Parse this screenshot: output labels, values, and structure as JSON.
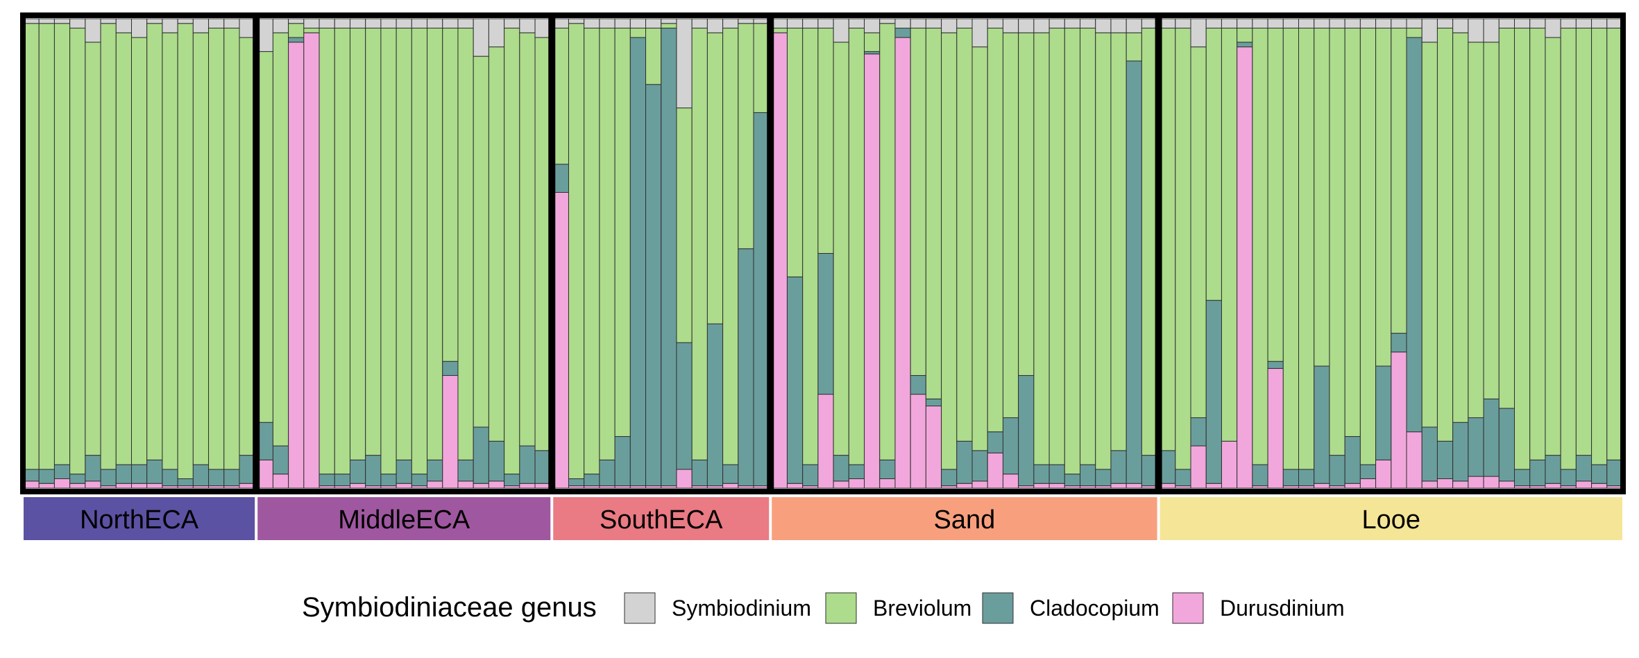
{
  "chart_data": {
    "type": "bar",
    "stacked": true,
    "normalized": true,
    "ylim": [
      0,
      1
    ],
    "xlabel": "",
    "ylabel": "",
    "title": "",
    "grid": false,
    "legend_position": "bottom",
    "series_order": [
      "Durusdinium",
      "Cladocopium",
      "Breviolum",
      "Symbiodinium"
    ],
    "colors": {
      "Symbiodinium": "#D3D3D3",
      "Breviolum": "#ADDC8C",
      "Cladocopium": "#6A9E9D",
      "Durusdinium": "#F1A7DC"
    },
    "legend": {
      "title": "Symbiodiniaceae genus",
      "items": [
        {
          "name": "Symbiodinium",
          "key": "Symbiodinium"
        },
        {
          "name": "Breviolum",
          "key": "Breviolum"
        },
        {
          "name": "Cladocopium",
          "key": "Cladocopium"
        },
        {
          "name": "Durusdinium",
          "key": "Durusdinium"
        }
      ]
    },
    "groups": [
      {
        "name": "NorthECA",
        "color": "#5B52A3",
        "samples": [
          {
            "Symbiodinium": 0.01,
            "Breviolum": 0.95,
            "Cladocopium": 0.025,
            "Durusdinium": 0.015
          },
          {
            "Symbiodinium": 0.01,
            "Breviolum": 0.95,
            "Cladocopium": 0.03,
            "Durusdinium": 0.01
          },
          {
            "Symbiodinium": 0.01,
            "Breviolum": 0.94,
            "Cladocopium": 0.03,
            "Durusdinium": 0.02
          },
          {
            "Symbiodinium": 0.02,
            "Breviolum": 0.95,
            "Cladocopium": 0.02,
            "Durusdinium": 0.01
          },
          {
            "Symbiodinium": 0.05,
            "Breviolum": 0.88,
            "Cladocopium": 0.055,
            "Durusdinium": 0.015
          },
          {
            "Symbiodinium": 0.01,
            "Breviolum": 0.95,
            "Cladocopium": 0.035,
            "Durusdinium": 0.005
          },
          {
            "Symbiodinium": 0.03,
            "Breviolum": 0.92,
            "Cladocopium": 0.04,
            "Durusdinium": 0.01
          },
          {
            "Symbiodinium": 0.04,
            "Breviolum": 0.91,
            "Cladocopium": 0.04,
            "Durusdinium": 0.01
          },
          {
            "Symbiodinium": 0.01,
            "Breviolum": 0.93,
            "Cladocopium": 0.05,
            "Durusdinium": 0.01
          },
          {
            "Symbiodinium": 0.03,
            "Breviolum": 0.93,
            "Cladocopium": 0.035,
            "Durusdinium": 0.005
          },
          {
            "Symbiodinium": 0.01,
            "Breviolum": 0.97,
            "Cladocopium": 0.015,
            "Durusdinium": 0.005
          },
          {
            "Symbiodinium": 0.03,
            "Breviolum": 0.92,
            "Cladocopium": 0.045,
            "Durusdinium": 0.005
          },
          {
            "Symbiodinium": 0.02,
            "Breviolum": 0.94,
            "Cladocopium": 0.035,
            "Durusdinium": 0.005
          },
          {
            "Symbiodinium": 0.02,
            "Breviolum": 0.94,
            "Cladocopium": 0.035,
            "Durusdinium": 0.005
          },
          {
            "Symbiodinium": 0.04,
            "Breviolum": 0.89,
            "Cladocopium": 0.06,
            "Durusdinium": 0.01
          }
        ]
      },
      {
        "name": "MiddleECA",
        "color": "#9F58A0",
        "samples": [
          {
            "Symbiodinium": 0.07,
            "Breviolum": 0.79,
            "Cladocopium": 0.08,
            "Durusdinium": 0.06
          },
          {
            "Symbiodinium": 0.03,
            "Breviolum": 0.88,
            "Cladocopium": 0.06,
            "Durusdinium": 0.03
          },
          {
            "Symbiodinium": 0.01,
            "Breviolum": 0.03,
            "Cladocopium": 0.01,
            "Durusdinium": 0.95
          },
          {
            "Symbiodinium": 0.02,
            "Breviolum": 0.01,
            "Cladocopium": 0.0,
            "Durusdinium": 0.97
          },
          {
            "Symbiodinium": 0.02,
            "Breviolum": 0.95,
            "Cladocopium": 0.025,
            "Durusdinium": 0.005
          },
          {
            "Symbiodinium": 0.02,
            "Breviolum": 0.95,
            "Cladocopium": 0.025,
            "Durusdinium": 0.005
          },
          {
            "Symbiodinium": 0.02,
            "Breviolum": 0.92,
            "Cladocopium": 0.05,
            "Durusdinium": 0.01
          },
          {
            "Symbiodinium": 0.02,
            "Breviolum": 0.91,
            "Cladocopium": 0.065,
            "Durusdinium": 0.005
          },
          {
            "Symbiodinium": 0.02,
            "Breviolum": 0.95,
            "Cladocopium": 0.025,
            "Durusdinium": 0.005
          },
          {
            "Symbiodinium": 0.02,
            "Breviolum": 0.92,
            "Cladocopium": 0.05,
            "Durusdinium": 0.01
          },
          {
            "Symbiodinium": 0.02,
            "Breviolum": 0.95,
            "Cladocopium": 0.025,
            "Durusdinium": 0.005
          },
          {
            "Symbiodinium": 0.02,
            "Breviolum": 0.92,
            "Cladocopium": 0.045,
            "Durusdinium": 0.015
          },
          {
            "Symbiodinium": 0.02,
            "Breviolum": 0.71,
            "Cladocopium": 0.03,
            "Durusdinium": 0.24
          },
          {
            "Symbiodinium": 0.02,
            "Breviolum": 0.92,
            "Cladocopium": 0.045,
            "Durusdinium": 0.015
          },
          {
            "Symbiodinium": 0.08,
            "Breviolum": 0.79,
            "Cladocopium": 0.12,
            "Durusdinium": 0.01
          },
          {
            "Symbiodinium": 0.06,
            "Breviolum": 0.84,
            "Cladocopium": 0.085,
            "Durusdinium": 0.015
          },
          {
            "Symbiodinium": 0.02,
            "Breviolum": 0.95,
            "Cladocopium": 0.025,
            "Durusdinium": 0.005
          },
          {
            "Symbiodinium": 0.03,
            "Breviolum": 0.88,
            "Cladocopium": 0.08,
            "Durusdinium": 0.01
          },
          {
            "Symbiodinium": 0.04,
            "Breviolum": 0.88,
            "Cladocopium": 0.07,
            "Durusdinium": 0.01
          }
        ]
      },
      {
        "name": "SouthECA",
        "color": "#EA7A83",
        "samples": [
          {
            "Symbiodinium": 0.02,
            "Breviolum": 0.29,
            "Cladocopium": 0.06,
            "Durusdinium": 0.63
          },
          {
            "Symbiodinium": 0.01,
            "Breviolum": 0.97,
            "Cladocopium": 0.015,
            "Durusdinium": 0.005
          },
          {
            "Symbiodinium": 0.02,
            "Breviolum": 0.95,
            "Cladocopium": 0.025,
            "Durusdinium": 0.005
          },
          {
            "Symbiodinium": 0.02,
            "Breviolum": 0.92,
            "Cladocopium": 0.055,
            "Durusdinium": 0.005
          },
          {
            "Symbiodinium": 0.02,
            "Breviolum": 0.87,
            "Cladocopium": 0.105,
            "Durusdinium": 0.005
          },
          {
            "Symbiodinium": 0.02,
            "Breviolum": 0.02,
            "Cladocopium": 0.955,
            "Durusdinium": 0.005
          },
          {
            "Symbiodinium": 0.02,
            "Breviolum": 0.12,
            "Cladocopium": 0.855,
            "Durusdinium": 0.005
          },
          {
            "Symbiodinium": 0.01,
            "Breviolum": 0.01,
            "Cladocopium": 0.975,
            "Durusdinium": 0.005
          },
          {
            "Symbiodinium": 0.19,
            "Breviolum": 0.5,
            "Cladocopium": 0.27,
            "Durusdinium": 0.04
          },
          {
            "Symbiodinium": 0.02,
            "Breviolum": 0.92,
            "Cladocopium": 0.055,
            "Durusdinium": 0.005
          },
          {
            "Symbiodinium": 0.03,
            "Breviolum": 0.62,
            "Cladocopium": 0.345,
            "Durusdinium": 0.005
          },
          {
            "Symbiodinium": 0.02,
            "Breviolum": 0.93,
            "Cladocopium": 0.04,
            "Durusdinium": 0.01
          },
          {
            "Symbiodinium": 0.01,
            "Breviolum": 0.48,
            "Cladocopium": 0.505,
            "Durusdinium": 0.005
          },
          {
            "Symbiodinium": 0.01,
            "Breviolum": 0.19,
            "Cladocopium": 0.795,
            "Durusdinium": 0.005
          }
        ]
      },
      {
        "name": "Sand",
        "color": "#F8A07E",
        "samples": [
          {
            "Symbiodinium": 0.02,
            "Breviolum": 0.01,
            "Cladocopium": 0.0,
            "Durusdinium": 0.97
          },
          {
            "Symbiodinium": 0.02,
            "Breviolum": 0.53,
            "Cladocopium": 0.44,
            "Durusdinium": 0.01
          },
          {
            "Symbiodinium": 0.02,
            "Breviolum": 0.93,
            "Cladocopium": 0.045,
            "Durusdinium": 0.005
          },
          {
            "Symbiodinium": 0.02,
            "Breviolum": 0.48,
            "Cladocopium": 0.3,
            "Durusdinium": 0.2
          },
          {
            "Symbiodinium": 0.05,
            "Breviolum": 0.88,
            "Cladocopium": 0.055,
            "Durusdinium": 0.015
          },
          {
            "Symbiodinium": 0.02,
            "Breviolum": 0.93,
            "Cladocopium": 0.03,
            "Durusdinium": 0.02
          },
          {
            "Symbiodinium": 0.03,
            "Breviolum": 0.04,
            "Cladocopium": 0.005,
            "Durusdinium": 0.925
          },
          {
            "Symbiodinium": 0.01,
            "Breviolum": 0.93,
            "Cladocopium": 0.04,
            "Durusdinium": 0.02
          },
          {
            "Symbiodinium": 0.02,
            "Breviolum": 0.0,
            "Cladocopium": 0.02,
            "Durusdinium": 0.96
          },
          {
            "Symbiodinium": 0.02,
            "Breviolum": 0.74,
            "Cladocopium": 0.04,
            "Durusdinium": 0.2
          },
          {
            "Symbiodinium": 0.02,
            "Breviolum": 0.79,
            "Cladocopium": 0.015,
            "Durusdinium": 0.175
          },
          {
            "Symbiodinium": 0.03,
            "Breviolum": 0.93,
            "Cladocopium": 0.035,
            "Durusdinium": 0.005
          },
          {
            "Symbiodinium": 0.02,
            "Breviolum": 0.88,
            "Cladocopium": 0.09,
            "Durusdinium": 0.01
          },
          {
            "Symbiodinium": 0.06,
            "Breviolum": 0.86,
            "Cladocopium": 0.065,
            "Durusdinium": 0.015
          },
          {
            "Symbiodinium": 0.02,
            "Breviolum": 0.86,
            "Cladocopium": 0.045,
            "Durusdinium": 0.075
          },
          {
            "Symbiodinium": 0.03,
            "Breviolum": 0.82,
            "Cladocopium": 0.12,
            "Durusdinium": 0.03
          },
          {
            "Symbiodinium": 0.03,
            "Breviolum": 0.73,
            "Cladocopium": 0.235,
            "Durusdinium": 0.005
          },
          {
            "Symbiodinium": 0.03,
            "Breviolum": 0.92,
            "Cladocopium": 0.04,
            "Durusdinium": 0.01
          },
          {
            "Symbiodinium": 0.02,
            "Breviolum": 0.93,
            "Cladocopium": 0.04,
            "Durusdinium": 0.01
          },
          {
            "Symbiodinium": 0.02,
            "Breviolum": 0.95,
            "Cladocopium": 0.025,
            "Durusdinium": 0.005
          },
          {
            "Symbiodinium": 0.02,
            "Breviolum": 0.93,
            "Cladocopium": 0.045,
            "Durusdinium": 0.005
          },
          {
            "Symbiodinium": 0.03,
            "Breviolum": 0.93,
            "Cladocopium": 0.035,
            "Durusdinium": 0.005
          },
          {
            "Symbiodinium": 0.03,
            "Breviolum": 0.89,
            "Cladocopium": 0.07,
            "Durusdinium": 0.01
          },
          {
            "Symbiodinium": 0.03,
            "Breviolum": 0.06,
            "Cladocopium": 0.9,
            "Durusdinium": 0.01
          },
          {
            "Symbiodinium": 0.02,
            "Breviolum": 0.91,
            "Cladocopium": 0.065,
            "Durusdinium": 0.005
          }
        ]
      },
      {
        "name": "Looe",
        "color": "#F5E597",
        "samples": [
          {
            "Symbiodinium": 0.02,
            "Breviolum": 0.9,
            "Cladocopium": 0.07,
            "Durusdinium": 0.01
          },
          {
            "Symbiodinium": 0.02,
            "Breviolum": 0.94,
            "Cladocopium": 0.035,
            "Durusdinium": 0.005
          },
          {
            "Symbiodinium": 0.06,
            "Breviolum": 0.79,
            "Cladocopium": 0.06,
            "Durusdinium": 0.09
          },
          {
            "Symbiodinium": 0.02,
            "Breviolum": 0.58,
            "Cladocopium": 0.39,
            "Durusdinium": 0.01
          },
          {
            "Symbiodinium": 0.02,
            "Breviolum": 0.88,
            "Cladocopium": 0.0,
            "Durusdinium": 0.1
          },
          {
            "Symbiodinium": 0.02,
            "Breviolum": 0.03,
            "Cladocopium": 0.01,
            "Durusdinium": 0.94
          },
          {
            "Symbiodinium": 0.02,
            "Breviolum": 0.93,
            "Cladocopium": 0.045,
            "Durusdinium": 0.005
          },
          {
            "Symbiodinium": 0.02,
            "Breviolum": 0.71,
            "Cladocopium": 0.015,
            "Durusdinium": 0.255
          },
          {
            "Symbiodinium": 0.02,
            "Breviolum": 0.94,
            "Cladocopium": 0.035,
            "Durusdinium": 0.005
          },
          {
            "Symbiodinium": 0.02,
            "Breviolum": 0.94,
            "Cladocopium": 0.035,
            "Durusdinium": 0.005
          },
          {
            "Symbiodinium": 0.02,
            "Breviolum": 0.72,
            "Cladocopium": 0.25,
            "Durusdinium": 0.01
          },
          {
            "Symbiodinium": 0.02,
            "Breviolum": 0.91,
            "Cladocopium": 0.065,
            "Durusdinium": 0.005
          },
          {
            "Symbiodinium": 0.02,
            "Breviolum": 0.87,
            "Cladocopium": 0.1,
            "Durusdinium": 0.01
          },
          {
            "Symbiodinium": 0.02,
            "Breviolum": 0.93,
            "Cladocopium": 0.03,
            "Durusdinium": 0.02
          },
          {
            "Symbiodinium": 0.02,
            "Breviolum": 0.72,
            "Cladocopium": 0.2,
            "Durusdinium": 0.06
          },
          {
            "Symbiodinium": 0.02,
            "Breviolum": 0.65,
            "Cladocopium": 0.04,
            "Durusdinium": 0.29
          },
          {
            "Symbiodinium": 0.02,
            "Breviolum": 0.02,
            "Cladocopium": 0.84,
            "Durusdinium": 0.12
          },
          {
            "Symbiodinium": 0.05,
            "Breviolum": 0.82,
            "Cladocopium": 0.115,
            "Durusdinium": 0.015
          },
          {
            "Symbiodinium": 0.02,
            "Breviolum": 0.88,
            "Cladocopium": 0.08,
            "Durusdinium": 0.02
          },
          {
            "Symbiodinium": 0.03,
            "Breviolum": 0.83,
            "Cladocopium": 0.125,
            "Durusdinium": 0.015
          },
          {
            "Symbiodinium": 0.05,
            "Breviolum": 0.8,
            "Cladocopium": 0.125,
            "Durusdinium": 0.025
          },
          {
            "Symbiodinium": 0.05,
            "Breviolum": 0.76,
            "Cladocopium": 0.165,
            "Durusdinium": 0.025
          },
          {
            "Symbiodinium": 0.02,
            "Breviolum": 0.81,
            "Cladocopium": 0.155,
            "Durusdinium": 0.015
          },
          {
            "Symbiodinium": 0.02,
            "Breviolum": 0.94,
            "Cladocopium": 0.035,
            "Durusdinium": 0.005
          },
          {
            "Symbiodinium": 0.02,
            "Breviolum": 0.92,
            "Cladocopium": 0.055,
            "Durusdinium": 0.005
          },
          {
            "Symbiodinium": 0.04,
            "Breviolum": 0.89,
            "Cladocopium": 0.06,
            "Durusdinium": 0.01
          },
          {
            "Symbiodinium": 0.02,
            "Breviolum": 0.94,
            "Cladocopium": 0.035,
            "Durusdinium": 0.005
          },
          {
            "Symbiodinium": 0.02,
            "Breviolum": 0.91,
            "Cladocopium": 0.055,
            "Durusdinium": 0.015
          },
          {
            "Symbiodinium": 0.02,
            "Breviolum": 0.93,
            "Cladocopium": 0.04,
            "Durusdinium": 0.01
          },
          {
            "Symbiodinium": 0.02,
            "Breviolum": 0.92,
            "Cladocopium": 0.055,
            "Durusdinium": 0.005
          }
        ]
      }
    ]
  }
}
